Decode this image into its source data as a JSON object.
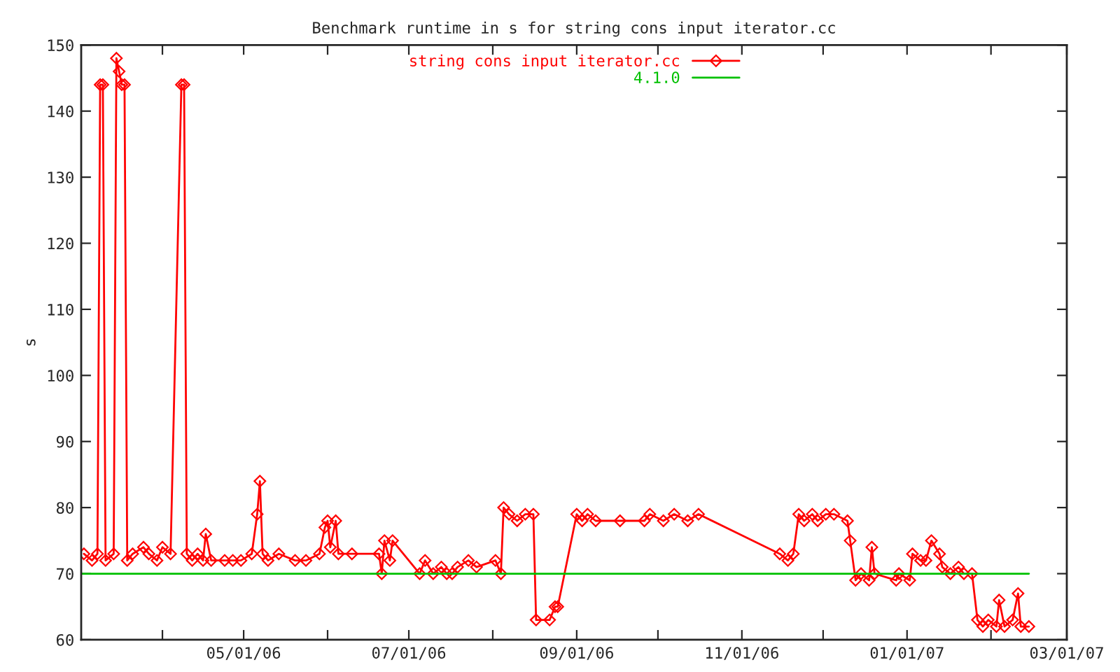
{
  "chart_data": {
    "type": "line",
    "title": "Benchmark runtime in s for string cons input iterator.cc",
    "ylabel": "s",
    "xlim": [
      "2006-03-02",
      "2007-03-01"
    ],
    "ylim": [
      60,
      150
    ],
    "yticks": [
      60,
      70,
      80,
      90,
      100,
      110,
      120,
      130,
      140,
      150
    ],
    "xticks": [
      {
        "value": "2006-04-01",
        "label": null
      },
      {
        "value": "2006-05-01",
        "label": "05/01/06"
      },
      {
        "value": "2006-06-01",
        "label": null
      },
      {
        "value": "2006-07-01",
        "label": "07/01/06"
      },
      {
        "value": "2006-08-01",
        "label": null
      },
      {
        "value": "2006-09-01",
        "label": "09/01/06"
      },
      {
        "value": "2006-10-01",
        "label": null
      },
      {
        "value": "2006-11-01",
        "label": "11/01/06"
      },
      {
        "value": "2006-12-01",
        "label": null
      },
      {
        "value": "2007-01-01",
        "label": "01/01/07"
      },
      {
        "value": "2007-02-01",
        "label": null
      },
      {
        "value": "2007-03-01",
        "label": "03/01/07"
      }
    ],
    "grid": false,
    "legend": "top",
    "marker": "diamond",
    "series": [
      {
        "name": "string cons input iterator.cc",
        "color": "#ff0000",
        "x": [
          "2006-03-03",
          "2006-03-06",
          "2006-03-08",
          "2006-03-09",
          "2006-03-10",
          "2006-03-11",
          "2006-03-14",
          "2006-03-15",
          "2006-03-16",
          "2006-03-17",
          "2006-03-18",
          "2006-03-19",
          "2006-03-21",
          "2006-03-25",
          "2006-03-27",
          "2006-03-30",
          "2006-04-01",
          "2006-04-04",
          "2006-04-08",
          "2006-04-09",
          "2006-04-10",
          "2006-04-12",
          "2006-04-14",
          "2006-04-16",
          "2006-04-17",
          "2006-04-19",
          "2006-04-24",
          "2006-04-27",
          "2006-04-30",
          "2006-05-04",
          "2006-05-06",
          "2006-05-07",
          "2006-05-08",
          "2006-05-10",
          "2006-05-14",
          "2006-05-20",
          "2006-05-24",
          "2006-05-29",
          "2006-05-31",
          "2006-06-01",
          "2006-06-02",
          "2006-06-04",
          "2006-06-05",
          "2006-06-10",
          "2006-06-20",
          "2006-06-21",
          "2006-06-22",
          "2006-06-24",
          "2006-06-25",
          "2006-07-05",
          "2006-07-07",
          "2006-07-10",
          "2006-07-13",
          "2006-07-15",
          "2006-07-17",
          "2006-07-19",
          "2006-07-23",
          "2006-07-26",
          "2006-08-02",
          "2006-08-04",
          "2006-08-05",
          "2006-08-07",
          "2006-08-10",
          "2006-08-13",
          "2006-08-16",
          "2006-08-17",
          "2006-08-22",
          "2006-08-24",
          "2006-08-25",
          "2006-09-01",
          "2006-09-03",
          "2006-09-05",
          "2006-09-08",
          "2006-09-17",
          "2006-09-26",
          "2006-09-28",
          "2006-10-03",
          "2006-10-07",
          "2006-10-12",
          "2006-10-16",
          "2006-11-15",
          "2006-11-18",
          "2006-11-20",
          "2006-11-22",
          "2006-11-24",
          "2006-11-27",
          "2006-11-29",
          "2006-12-02",
          "2006-12-05",
          "2006-12-10",
          "2006-12-11",
          "2006-12-13",
          "2006-12-15",
          "2006-12-18",
          "2006-12-19",
          "2006-12-20",
          "2006-12-28",
          "2006-12-29",
          "2007-01-02",
          "2007-01-03",
          "2007-01-06",
          "2007-01-08",
          "2007-01-10",
          "2007-01-13",
          "2007-01-14",
          "2007-01-17",
          "2007-01-20",
          "2007-01-22",
          "2007-01-25",
          "2007-01-27",
          "2007-01-29",
          "2007-01-31",
          "2007-02-03",
          "2007-02-04",
          "2007-02-06",
          "2007-02-09",
          "2007-02-11",
          "2007-02-12",
          "2007-02-15"
        ],
        "values": [
          73,
          72,
          73,
          144,
          144,
          72,
          73,
          148,
          146,
          144,
          144,
          72,
          73,
          74,
          73,
          72,
          74,
          73,
          144,
          144,
          73,
          72,
          73,
          72,
          76,
          72,
          72,
          72,
          72,
          73,
          79,
          84,
          73,
          72,
          73,
          72,
          72,
          73,
          77,
          78,
          74,
          78,
          73,
          73,
          73,
          70,
          75,
          72,
          75,
          70,
          72,
          70,
          71,
          70,
          70,
          71,
          72,
          71,
          72,
          70,
          80,
          79,
          78,
          79,
          79,
          63,
          63,
          65,
          65,
          79,
          78,
          79,
          78,
          78,
          78,
          79,
          78,
          79,
          78,
          79,
          73,
          72,
          73,
          79,
          78,
          79,
          78,
          79,
          79,
          78,
          75,
          69,
          70,
          69,
          74,
          70,
          69,
          70,
          69,
          73,
          72,
          72,
          75,
          73,
          71,
          70,
          71,
          70,
          70,
          63,
          62,
          63,
          62,
          66,
          62,
          63,
          67,
          62,
          62
        ]
      },
      {
        "name": "4.1.0",
        "color": "#00c000",
        "marker": "none",
        "x": [
          "2006-03-02",
          "2007-02-15"
        ],
        "values": [
          70,
          70
        ]
      }
    ]
  }
}
